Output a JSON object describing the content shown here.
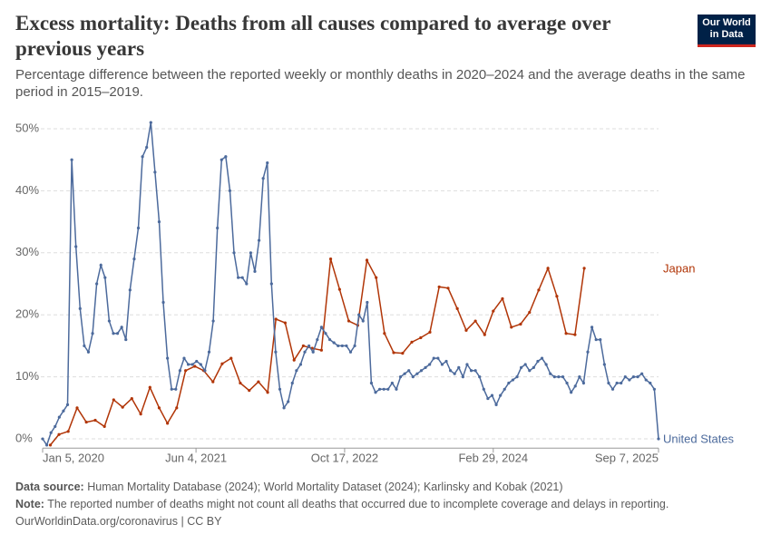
{
  "header": {
    "title": "Excess mortality: Deaths from all causes compared to average over previous years",
    "subtitle": "Percentage difference between the reported weekly or monthly deaths in 2020–2024 and the average deaths in the same period in 2015–2019.",
    "logo": {
      "line1": "Our World",
      "line2": "in Data"
    }
  },
  "chart_data": {
    "type": "line",
    "xlim": [
      "2020-01-05",
      "2025-09-07"
    ],
    "xticks": [
      {
        "value": "2020-01-05",
        "label": "Jan 5, 2020"
      },
      {
        "value": "2021-06-04",
        "label": "Jun 4, 2021"
      },
      {
        "value": "2022-10-17",
        "label": "Oct 17, 2022"
      },
      {
        "value": "2024-02-29",
        "label": "Feb 29, 2024"
      },
      {
        "value": "2025-09-07",
        "label": "Sep 7, 2025"
      }
    ],
    "ylim": [
      -1.5,
      52
    ],
    "yticks": [
      {
        "value": 0,
        "label": "0%"
      },
      {
        "value": 10,
        "label": "10%"
      },
      {
        "value": 20,
        "label": "20%"
      },
      {
        "value": 30,
        "label": "30%"
      },
      {
        "value": 40,
        "label": "40%"
      },
      {
        "value": 50,
        "label": "50%"
      }
    ],
    "grid": true,
    "series": [
      {
        "name": "Japan",
        "color": "#b13507",
        "x": [
          "2020-01-31",
          "2020-02-29",
          "2020-03-31",
          "2020-04-30",
          "2020-05-31",
          "2020-06-30",
          "2020-07-31",
          "2020-08-31",
          "2020-09-30",
          "2020-10-31",
          "2020-11-30",
          "2020-12-31",
          "2021-01-31",
          "2021-02-28",
          "2021-03-31",
          "2021-04-30",
          "2021-05-31",
          "2021-06-30",
          "2021-07-31",
          "2021-08-31",
          "2021-09-30",
          "2021-10-31",
          "2021-11-30",
          "2021-12-31",
          "2022-01-31",
          "2022-02-28",
          "2022-03-31",
          "2022-04-30",
          "2022-05-31",
          "2022-06-30",
          "2022-07-31",
          "2022-08-31",
          "2022-09-30",
          "2022-10-31",
          "2022-11-30",
          "2022-12-31",
          "2023-01-31",
          "2023-02-28",
          "2023-03-31",
          "2023-04-30",
          "2023-05-31",
          "2023-06-30",
          "2023-07-31",
          "2023-08-31",
          "2023-09-30",
          "2023-10-31",
          "2023-11-30",
          "2023-12-31",
          "2024-01-31",
          "2024-02-29",
          "2024-03-31",
          "2024-04-30",
          "2024-05-31",
          "2024-06-30",
          "2024-07-31",
          "2024-08-31",
          "2024-09-30",
          "2024-10-31",
          "2024-11-30",
          "2024-12-31"
        ],
        "values": [
          -1,
          0.7,
          1.2,
          5,
          2.7,
          3,
          2,
          6.3,
          5.1,
          6.5,
          4,
          8.3,
          5,
          2.5,
          5,
          11,
          11.7,
          11,
          9.2,
          12.1,
          13,
          9,
          7.8,
          9.2,
          7.5,
          19.3,
          18.7,
          12.7,
          15,
          14.6,
          14.3,
          29,
          24.1,
          19,
          18.3,
          28.8,
          26,
          17,
          13.9,
          13.8,
          15.6,
          16.3,
          17.2,
          24.5,
          24.3,
          21,
          17.5,
          19,
          16.8,
          20.6,
          22.6,
          18,
          18.5,
          20.4,
          24,
          27.5,
          23,
          17,
          16.8,
          27.5
        ]
      },
      {
        "name": "United States",
        "color": "#4c6a9c",
        "x": [
          "2020-01-05",
          "2020-01-19",
          "2020-02-02",
          "2020-02-16",
          "2020-03-01",
          "2020-03-15",
          "2020-03-29",
          "2020-04-12",
          "2020-04-26",
          "2020-05-10",
          "2020-05-24",
          "2020-06-07",
          "2020-06-21",
          "2020-07-05",
          "2020-07-19",
          "2020-08-02",
          "2020-08-16",
          "2020-08-30",
          "2020-09-13",
          "2020-09-27",
          "2020-10-11",
          "2020-10-25",
          "2020-11-08",
          "2020-11-22",
          "2020-12-06",
          "2020-12-20",
          "2021-01-03",
          "2021-01-17",
          "2021-01-31",
          "2021-02-14",
          "2021-02-28",
          "2021-03-14",
          "2021-03-28",
          "2021-04-11",
          "2021-04-25",
          "2021-05-09",
          "2021-05-23",
          "2021-06-06",
          "2021-06-20",
          "2021-07-04",
          "2021-07-18",
          "2021-08-01",
          "2021-08-15",
          "2021-08-29",
          "2021-09-12",
          "2021-09-26",
          "2021-10-10",
          "2021-10-24",
          "2021-11-07",
          "2021-11-21",
          "2021-12-05",
          "2021-12-19",
          "2022-01-02",
          "2022-01-16",
          "2022-01-30",
          "2022-02-13",
          "2022-02-27",
          "2022-03-13",
          "2022-03-27",
          "2022-04-10",
          "2022-04-24",
          "2022-05-08",
          "2022-05-22",
          "2022-06-05",
          "2022-06-19",
          "2022-07-03",
          "2022-07-17",
          "2022-07-31",
          "2022-08-14",
          "2022-08-28",
          "2022-09-11",
          "2022-09-25",
          "2022-10-09",
          "2022-10-23",
          "2022-11-06",
          "2022-11-20",
          "2022-12-04",
          "2022-12-18",
          "2023-01-01",
          "2023-01-15",
          "2023-01-29",
          "2023-02-12",
          "2023-02-26",
          "2023-03-12",
          "2023-03-26",
          "2023-04-09",
          "2023-04-23",
          "2023-05-07",
          "2023-05-21",
          "2023-06-04",
          "2023-06-18",
          "2023-07-02",
          "2023-07-16",
          "2023-07-30",
          "2023-08-13",
          "2023-08-27",
          "2023-09-10",
          "2023-09-24",
          "2023-10-08",
          "2023-10-22",
          "2023-11-05",
          "2023-11-19",
          "2023-12-03",
          "2023-12-17",
          "2023-12-31",
          "2024-01-14",
          "2024-01-28",
          "2024-02-11",
          "2024-02-25",
          "2024-03-10",
          "2024-03-24",
          "2024-04-07",
          "2024-04-21",
          "2024-05-05",
          "2024-05-19",
          "2024-06-02",
          "2024-06-16",
          "2024-06-30",
          "2024-07-14",
          "2024-07-28",
          "2024-08-11",
          "2024-08-25",
          "2024-09-08",
          "2024-09-22",
          "2024-10-06",
          "2024-10-20",
          "2024-11-03",
          "2024-11-17",
          "2024-12-01",
          "2024-12-15",
          "2024-12-29",
          "2025-01-12",
          "2025-01-26",
          "2025-02-09",
          "2025-02-23",
          "2025-03-09",
          "2025-03-23",
          "2025-04-06",
          "2025-04-20",
          "2025-05-04",
          "2025-05-18",
          "2025-06-01",
          "2025-06-15",
          "2025-06-29",
          "2025-07-13",
          "2025-07-27",
          "2025-08-10",
          "2025-08-24",
          "2025-09-07"
        ],
        "values": [
          0,
          -1,
          1,
          2,
          3.5,
          4.5,
          5.5,
          45,
          31,
          21,
          15,
          14,
          17,
          25,
          28,
          26,
          19,
          17,
          17,
          18,
          16,
          24,
          29,
          34,
          45.5,
          47,
          51,
          43,
          35,
          22,
          13,
          8,
          8,
          11,
          13,
          12,
          12,
          12.5,
          12,
          11,
          14,
          19,
          34,
          45,
          45.5,
          40,
          30,
          26,
          26,
          25,
          30,
          27,
          32,
          42,
          44.5,
          25,
          14,
          8,
          5,
          6,
          9,
          11,
          12,
          14,
          15,
          14,
          16,
          18,
          17,
          16,
          15.5,
          15,
          15,
          15,
          14,
          15,
          20,
          19,
          22,
          9,
          7.5,
          8,
          8,
          8,
          9,
          8,
          10,
          10.5,
          11,
          10,
          10.5,
          11,
          11.5,
          12,
          13,
          13,
          12,
          12.5,
          11,
          10.5,
          11.5,
          10,
          12,
          11,
          11,
          10,
          8,
          6.5,
          7,
          5.5,
          7,
          8,
          9,
          9.5,
          10,
          11.5,
          12,
          11,
          11.5,
          12.5,
          13,
          12,
          10.5,
          10,
          10,
          10,
          9,
          7.5,
          8.5,
          10,
          9,
          14,
          18,
          16,
          16,
          12,
          9,
          8,
          9,
          9,
          10,
          9.5,
          10,
          10,
          10.5,
          9.5,
          9,
          8,
          0
        ]
      }
    ]
  },
  "footer": {
    "source_label": "Data source:",
    "source": "Human Mortality Database (2024); World Mortality Dataset (2024); Karlinsky and Kobak (2021)",
    "note_label": "Note:",
    "note": "The reported number of deaths might not count all deaths that occurred due to incomplete coverage and delays in reporting.",
    "credit": "OurWorldinData.org/coronavirus | CC BY"
  }
}
